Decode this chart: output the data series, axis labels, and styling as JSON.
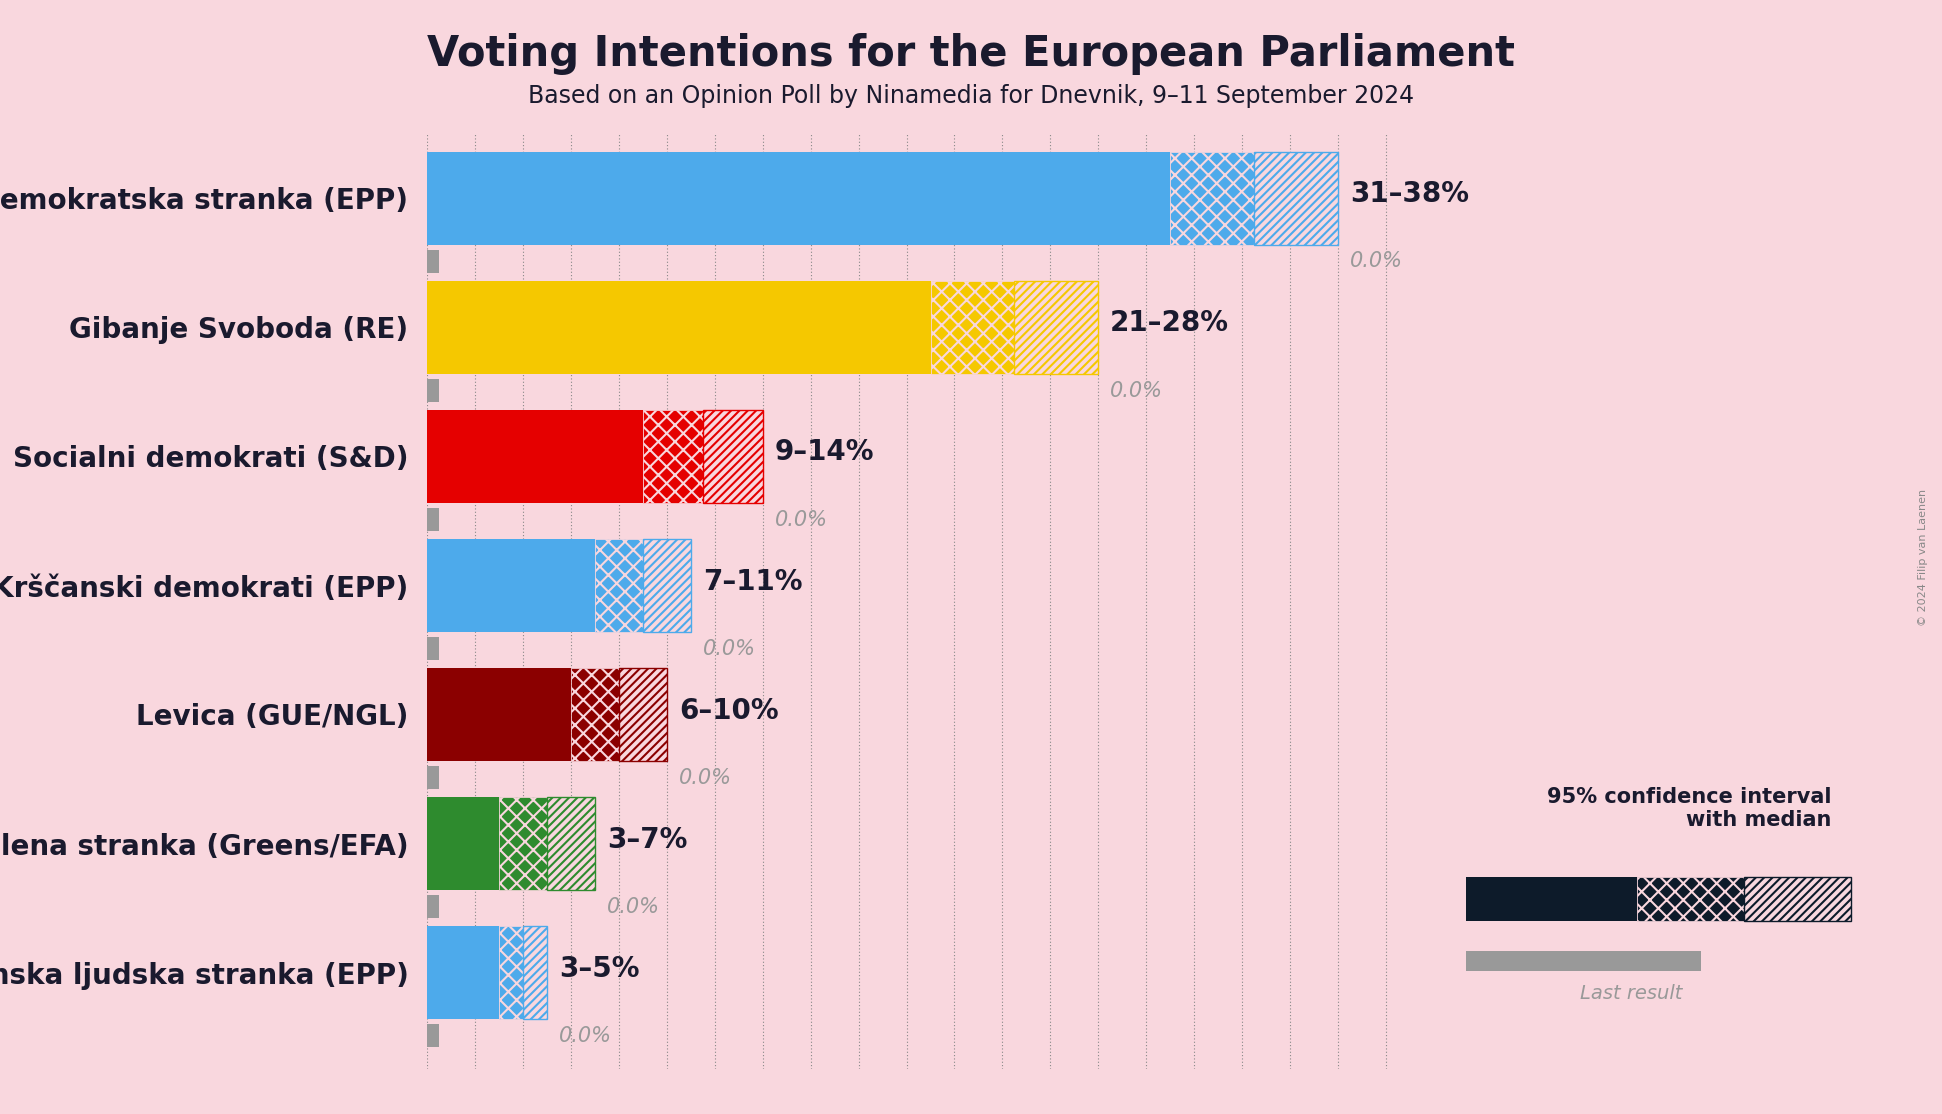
{
  "title": "Voting Intentions for the European Parliament",
  "subtitle": "Based on an Opinion Poll by Ninamedia for Dnevnik, 9–11 September 2024",
  "copyright": "© 2024 Filip van Laenen",
  "background_color": "#F9D7DE",
  "parties": [
    {
      "name": "Slovenska demokratska stranka (EPP)",
      "color": "#4DAAEB",
      "low": 31,
      "median": 34.5,
      "high": 38,
      "last_result": 0.0
    },
    {
      "name": "Gibanje Svoboda (RE)",
      "color": "#F5C800",
      "low": 21,
      "median": 24.5,
      "high": 28,
      "last_result": 0.0
    },
    {
      "name": "Socialni demokrati (S&D)",
      "color": "#E50000",
      "low": 9,
      "median": 11.5,
      "high": 14,
      "last_result": 0.0
    },
    {
      "name": "Nova Slovenija–Krščanski demokrati (EPP)",
      "color": "#4DAAEB",
      "low": 7,
      "median": 9,
      "high": 11,
      "last_result": 0.0
    },
    {
      "name": "Levica (GUE/NGL)",
      "color": "#8B0000",
      "low": 6,
      "median": 8,
      "high": 10,
      "last_result": 0.0
    },
    {
      "name": "VESNA–Zelena stranka (Greens/EFA)",
      "color": "#2E8B2E",
      "low": 3,
      "median": 5,
      "high": 7,
      "last_result": 0.0
    },
    {
      "name": "Slovenska ljudska stranka (EPP)",
      "color": "#4DAAEB",
      "low": 3,
      "median": 4,
      "high": 5,
      "last_result": 0.0
    }
  ],
  "xlim_max": 40,
  "bar_height": 0.72,
  "last_bar_height": 0.18,
  "last_bar_gap": 0.04,
  "grid_color": "#888888",
  "label_fontsize": 20,
  "title_fontsize": 30,
  "subtitle_fontsize": 17,
  "range_fontsize": 20,
  "last_result_fontsize": 15,
  "legend_dark_color": "#0D1B2A",
  "last_result_color": "#999999",
  "tick_interval": 2,
  "text_color": "#1a1a2e"
}
